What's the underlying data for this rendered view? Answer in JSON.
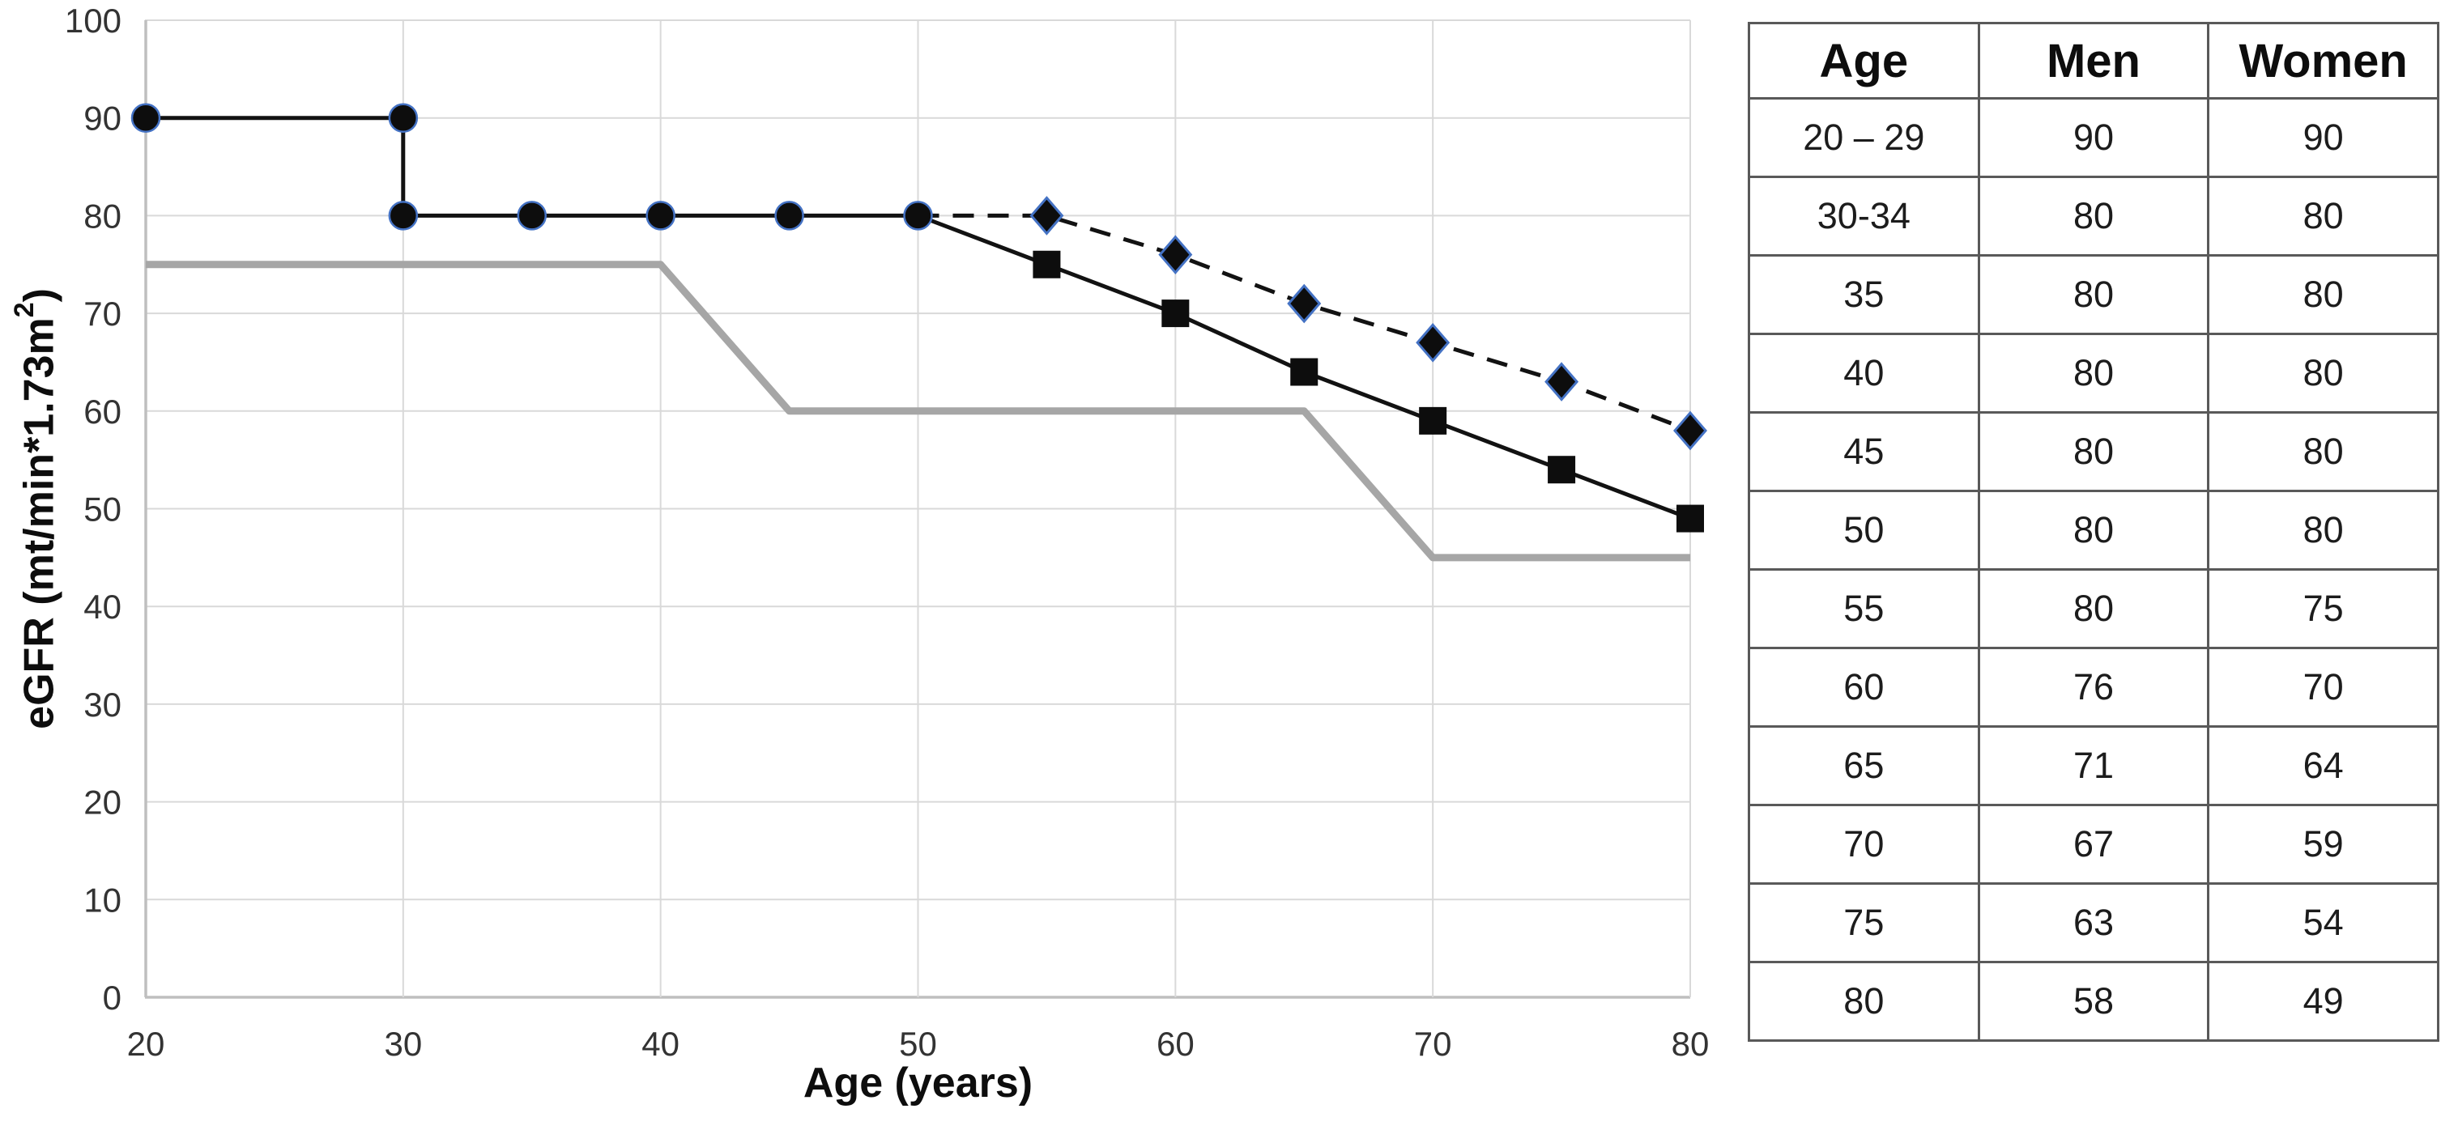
{
  "chart_data": {
    "type": "line",
    "title": "",
    "xlabel": "Age (years)",
    "ylabel": "eGFR (mt/min*1.73m²)",
    "ylabel_parts": {
      "main": "eGFR (mt/min*1.73m",
      "sup": "2",
      "end": ")"
    },
    "xlim": [
      20,
      80
    ],
    "ylim": [
      0,
      100
    ],
    "x_ticks": [
      20,
      30,
      40,
      50,
      60,
      70,
      80
    ],
    "y_ticks": [
      0,
      10,
      20,
      30,
      40,
      50,
      60,
      70,
      80,
      90,
      100
    ],
    "grid": true,
    "legend_position": "none",
    "style": {
      "grid_color": "#d9d9d9",
      "axis_color": "#bfbfbf",
      "tick_label_color": "#333333",
      "marker_outline_blue": "#4472c4",
      "line_black": "#121212",
      "line_gray": "#a6a6a6"
    },
    "series": [
      {
        "id": "ages-20-50-common",
        "marker": "circle",
        "line_style": "solid",
        "color": "#121212",
        "line_width": 5,
        "marker_fill": "#0d0d0d",
        "marker_outline": "#4472c4",
        "marker_start_index": 0,
        "points": [
          [
            20,
            90
          ],
          [
            30,
            90
          ],
          [
            30,
            80
          ],
          [
            35,
            80
          ],
          [
            40,
            80
          ],
          [
            45,
            80
          ],
          [
            50,
            80
          ]
        ]
      },
      {
        "id": "men",
        "marker": "diamond",
        "line_style": "dashed",
        "color": "#121212",
        "line_width": 5,
        "marker_fill": "#0d0d0d",
        "marker_outline": "#4472c4",
        "marker_start_index": 1,
        "points": [
          [
            50,
            80
          ],
          [
            55,
            80
          ],
          [
            60,
            76
          ],
          [
            65,
            71
          ],
          [
            70,
            67
          ],
          [
            75,
            63
          ],
          [
            80,
            58
          ]
        ]
      },
      {
        "id": "women",
        "marker": "square",
        "line_style": "solid",
        "color": "#121212",
        "line_width": 5,
        "marker_fill": "#0d0d0d",
        "marker_outline": "none",
        "marker_start_index": 1,
        "points": [
          [
            50,
            80
          ],
          [
            55,
            75
          ],
          [
            60,
            70
          ],
          [
            65,
            64
          ],
          [
            70,
            59
          ],
          [
            75,
            54
          ],
          [
            80,
            49
          ]
        ]
      },
      {
        "id": "gray-reference-line",
        "marker": "none",
        "line_style": "solid",
        "color": "#a6a6a6",
        "line_width": 9,
        "marker_fill": "none",
        "marker_outline": "none",
        "marker_start_index": 0,
        "points": [
          [
            20,
            75
          ],
          [
            40,
            75
          ],
          [
            45,
            60
          ],
          [
            65,
            60
          ],
          [
            70,
            45
          ],
          [
            80,
            45
          ]
        ]
      }
    ]
  },
  "table": {
    "columns": [
      "Age",
      "Men",
      "Women"
    ],
    "rows": [
      [
        "20 – 29",
        "90",
        "90"
      ],
      [
        "30-34",
        "80",
        "80"
      ],
      [
        "35",
        "80",
        "80"
      ],
      [
        "40",
        "80",
        "80"
      ],
      [
        "45",
        "80",
        "80"
      ],
      [
        "50",
        "80",
        "80"
      ],
      [
        "55",
        "80",
        "75"
      ],
      [
        "60",
        "76",
        "70"
      ],
      [
        "65",
        "71",
        "64"
      ],
      [
        "70",
        "67",
        "59"
      ],
      [
        "75",
        "63",
        "54"
      ],
      [
        "80",
        "58",
        "49"
      ]
    ]
  }
}
